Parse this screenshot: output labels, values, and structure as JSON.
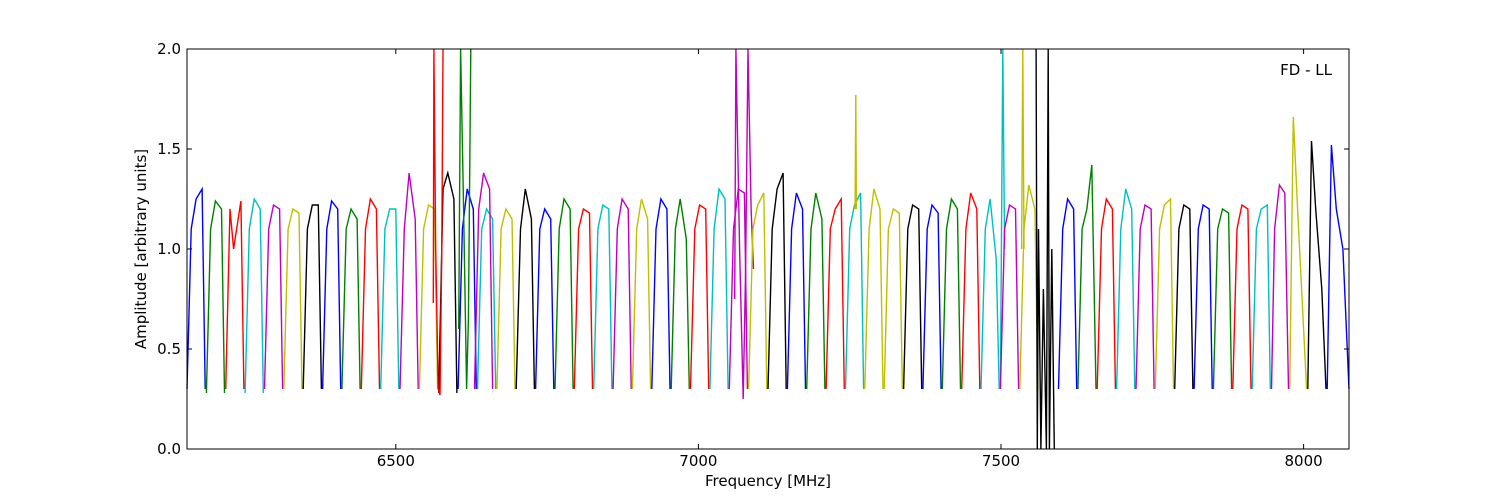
{
  "chart_data": {
    "type": "line",
    "annotation": "FD - LL",
    "xlabel": "Frequency [MHz]",
    "ylabel": "Amplitude [arbitrary units]",
    "xlim": [
      6155,
      8075
    ],
    "ylim": [
      0.0,
      2.0
    ],
    "x_ticks": [
      6500,
      7000,
      7500,
      8000
    ],
    "x_tick_labels": [
      "6500",
      "7000",
      "7500",
      "8000"
    ],
    "y_ticks": [
      0.0,
      0.5,
      1.0,
      1.5,
      2.0
    ],
    "y_tick_labels": [
      "0.0",
      "0.5",
      "1.0",
      "1.5",
      "2.0"
    ],
    "grid": false,
    "channel_width_mhz": 32,
    "first_channel_start_mhz": 6155,
    "color_cycle": [
      "#0000ff",
      "#008000",
      "#ff0000",
      "#00bfbf",
      "#bf00bf",
      "#bfbf00",
      "#000000"
    ],
    "flagged_color": "#bfbfbf",
    "series": [
      {
        "x": [
          6155,
          6162,
          6170,
          6180,
          6185
        ],
        "y": [
          0.3,
          1.1,
          1.25,
          1.3,
          0.3
        ],
        "color": "#0000ff"
      },
      {
        "x": [
          6187,
          6194,
          6202,
          6212,
          6217
        ],
        "y": [
          0.28,
          1.1,
          1.24,
          1.2,
          0.28
        ],
        "color": "#008000"
      },
      {
        "x": [
          6219,
          6226,
          6232,
          6244,
          6249
        ],
        "y": [
          0.3,
          1.2,
          1.0,
          1.24,
          0.3
        ],
        "color": "#ff0000"
      },
      {
        "x": [
          6251,
          6258,
          6266,
          6276,
          6281
        ],
        "y": [
          0.28,
          1.1,
          1.25,
          1.2,
          0.28
        ],
        "color": "#00bfbf"
      },
      {
        "x": [
          6283,
          6290,
          6298,
          6308,
          6313
        ],
        "y": [
          0.3,
          1.1,
          1.22,
          1.2,
          0.3
        ],
        "color": "#bf00bf"
      },
      {
        "x": [
          6315,
          6322,
          6330,
          6340,
          6345
        ],
        "y": [
          0.3,
          1.1,
          1.2,
          1.18,
          0.3
        ],
        "color": "#bfbf00"
      },
      {
        "x": [
          6347,
          6354,
          6362,
          6372,
          6377
        ],
        "y": [
          0.3,
          1.1,
          1.22,
          1.22,
          0.3
        ],
        "color": "#000000"
      },
      {
        "x": [
          6379,
          6386,
          6394,
          6404,
          6409
        ],
        "y": [
          0.3,
          1.1,
          1.24,
          1.2,
          0.3
        ],
        "color": "#0000ff"
      },
      {
        "x": [
          6411,
          6418,
          6426,
          6436,
          6441
        ],
        "y": [
          0.3,
          1.1,
          1.2,
          1.15,
          0.3
        ],
        "color": "#008000"
      },
      {
        "x": [
          6443,
          6450,
          6458,
          6468,
          6473
        ],
        "y": [
          0.3,
          1.1,
          1.25,
          1.2,
          0.3
        ],
        "color": "#ff0000"
      },
      {
        "x": [
          6475,
          6482,
          6490,
          6500,
          6505
        ],
        "y": [
          0.3,
          1.1,
          1.2,
          1.2,
          0.3
        ],
        "color": "#00bfbf"
      },
      {
        "x": [
          6507,
          6514,
          6522,
          6532,
          6537
        ],
        "y": [
          0.3,
          1.1,
          1.38,
          1.15,
          0.3
        ],
        "color": "#bf00bf"
      },
      {
        "x": [
          6539,
          6546,
          6554,
          6564,
          6569
        ],
        "y": [
          0.3,
          1.1,
          1.22,
          1.2,
          0.3
        ],
        "color": "#bfbf00"
      },
      {
        "x": [
          6571,
          6578,
          6586,
          6596,
          6601
        ],
        "y": [
          0.28,
          1.3,
          1.38,
          1.25,
          0.28
        ],
        "color": "#000000"
      },
      {
        "x": [
          6562,
          6563,
          6566,
          6570,
          6573,
          6576,
          6578
        ],
        "y": [
          0.73,
          2.0,
          1.0,
          0.3,
          0.27,
          1.0,
          2.0
        ],
        "color": "#ff0000"
      },
      {
        "x": [
          6603,
          6610,
          6618,
          6628,
          6633
        ],
        "y": [
          0.3,
          1.1,
          1.3,
          1.2,
          0.3
        ],
        "color": "#0000ff"
      },
      {
        "x": [
          6635,
          6642,
          6650,
          6660,
          6665
        ],
        "y": [
          0.3,
          1.1,
          1.2,
          1.15,
          0.3
        ],
        "color": "#00bfbf"
      },
      {
        "x": [
          6604,
          6607,
          6612,
          6617,
          6620,
          6624
        ],
        "y": [
          0.6,
          2.0,
          1.2,
          0.3,
          0.65,
          2.0
        ],
        "color": "#008000"
      },
      {
        "x": [
          6630,
          6637,
          6645,
          6655,
          6660
        ],
        "y": [
          0.3,
          1.2,
          1.38,
          1.3,
          0.3
        ],
        "color": "#bf00bf"
      },
      {
        "x": [
          6667,
          6674,
          6682,
          6692,
          6697
        ],
        "y": [
          0.3,
          1.1,
          1.2,
          1.15,
          0.3
        ],
        "color": "#bfbf00"
      },
      {
        "x": [
          6699,
          6706,
          6714,
          6724,
          6729
        ],
        "y": [
          0.3,
          1.1,
          1.3,
          1.15,
          0.3
        ],
        "color": "#000000"
      },
      {
        "x": [
          6731,
          6738,
          6746,
          6756,
          6761
        ],
        "y": [
          0.3,
          1.1,
          1.2,
          1.15,
          0.3
        ],
        "color": "#0000ff"
      },
      {
        "x": [
          6763,
          6770,
          6778,
          6788,
          6793
        ],
        "y": [
          0.3,
          1.1,
          1.25,
          1.2,
          0.3
        ],
        "color": "#008000"
      },
      {
        "x": [
          6795,
          6802,
          6810,
          6820,
          6825
        ],
        "y": [
          0.3,
          1.1,
          1.2,
          1.18,
          0.3
        ],
        "color": "#ff0000"
      },
      {
        "x": [
          6827,
          6834,
          6842,
          6852,
          6857
        ],
        "y": [
          0.3,
          1.1,
          1.22,
          1.2,
          0.3
        ],
        "color": "#00bfbf"
      },
      {
        "x": [
          6859,
          6866,
          6874,
          6884,
          6889
        ],
        "y": [
          0.3,
          1.1,
          1.25,
          1.2,
          0.3
        ],
        "color": "#bf00bf"
      },
      {
        "x": [
          6891,
          6898,
          6906,
          6916,
          6921
        ],
        "y": [
          0.3,
          1.1,
          1.25,
          1.15,
          0.3
        ],
        "color": "#bfbf00"
      },
      {
        "x": [
          6923,
          6930,
          6938,
          6948,
          6953
        ],
        "y": [
          0.3,
          1.1,
          1.25,
          1.2,
          0.3
        ],
        "color": "#0000ff"
      },
      {
        "x": [
          6955,
          6962,
          6970,
          6980,
          6985
        ],
        "y": [
          0.3,
          1.1,
          1.25,
          1.05,
          0.3
        ],
        "color": "#008000"
      },
      {
        "x": [
          6987,
          6994,
          7002,
          7012,
          7017
        ],
        "y": [
          0.3,
          1.1,
          1.22,
          1.2,
          0.3
        ],
        "color": "#ff0000"
      },
      {
        "x": [
          7019,
          7026,
          7034,
          7044,
          7049
        ],
        "y": [
          0.3,
          1.1,
          1.3,
          1.25,
          0.3
        ],
        "color": "#00bfbf"
      },
      {
        "x": [
          7060,
          7062,
          7068,
          7074,
          7078,
          7082,
          7087,
          7091
        ],
        "y": [
          0.75,
          2.0,
          1.0,
          0.25,
          0.9,
          2.0,
          1.2,
          0.9
        ],
        "color": "#bf00bf"
      },
      {
        "x": [
          7051,
          7058,
          7066,
          7076,
          7081
        ],
        "y": [
          0.3,
          1.1,
          1.3,
          1.28,
          0.3
        ],
        "color": "#bf00bf"
      },
      {
        "x": [
          7083,
          7090,
          7098,
          7108,
          7113
        ],
        "y": [
          0.3,
          1.1,
          1.22,
          1.28,
          0.3
        ],
        "color": "#bfbf00"
      },
      {
        "x": [
          7115,
          7122,
          7130,
          7140,
          7145
        ],
        "y": [
          0.3,
          1.1,
          1.3,
          1.38,
          0.3
        ],
        "color": "#000000"
      },
      {
        "x": [
          7147,
          7154,
          7162,
          7172,
          7177
        ],
        "y": [
          0.3,
          1.1,
          1.28,
          1.2,
          0.3
        ],
        "color": "#0000ff"
      },
      {
        "x": [
          7179,
          7186,
          7194,
          7204,
          7209
        ],
        "y": [
          0.3,
          1.1,
          1.28,
          1.15,
          0.3
        ],
        "color": "#008000"
      },
      {
        "x": [
          7211,
          7218,
          7226,
          7236,
          7241
        ],
        "y": [
          0.3,
          1.1,
          1.2,
          1.25,
          0.3
        ],
        "color": "#ff0000"
      },
      {
        "x": [
          7243,
          7250,
          7258,
          7268,
          7273
        ],
        "y": [
          0.3,
          1.1,
          1.22,
          1.28,
          0.3
        ],
        "color": "#00bfbf"
      },
      {
        "x": [
          7259,
          7260,
          7261
        ],
        "y": [
          1.2,
          1.77,
          1.2
        ],
        "color": "#bfbf00"
      },
      {
        "x": [
          7275,
          7282,
          7290,
          7300,
          7305
        ],
        "y": [
          0.3,
          1.1,
          1.3,
          1.2,
          0.3
        ],
        "color": "#bfbf00"
      },
      {
        "x": [
          7307,
          7314,
          7322,
          7332,
          7337
        ],
        "y": [
          0.3,
          1.1,
          1.2,
          1.18,
          0.3
        ],
        "color": "#bfbf00"
      },
      {
        "x": [
          7339,
          7346,
          7354,
          7364,
          7369
        ],
        "y": [
          0.3,
          1.1,
          1.22,
          1.2,
          0.3
        ],
        "color": "#000000"
      },
      {
        "x": [
          7371,
          7378,
          7386,
          7396,
          7401
        ],
        "y": [
          0.3,
          1.1,
          1.22,
          1.18,
          0.3
        ],
        "color": "#0000ff"
      },
      {
        "x": [
          7403,
          7410,
          7418,
          7428,
          7433
        ],
        "y": [
          0.3,
          1.1,
          1.25,
          1.2,
          0.3
        ],
        "color": "#008000"
      },
      {
        "x": [
          7435,
          7442,
          7450,
          7460,
          7465
        ],
        "y": [
          0.3,
          1.1,
          1.28,
          1.2,
          0.3
        ],
        "color": "#ff0000"
      },
      {
        "x": [
          7467,
          7474,
          7482,
          7492,
          7497
        ],
        "y": [
          0.3,
          1.1,
          1.25,
          0.95,
          0.3
        ],
        "color": "#00bfbf"
      },
      {
        "x": [
          7499,
          7503,
          7506
        ],
        "y": [
          0.3,
          2.0,
          1.0
        ],
        "color": "#00bfbf"
      },
      {
        "x": [
          7499,
          7506,
          7514,
          7524,
          7529
        ],
        "y": [
          0.3,
          1.1,
          1.22,
          1.2,
          0.3
        ],
        "color": "#bf00bf"
      },
      {
        "x": [
          7531,
          7538,
          7546,
          7556,
          7561
        ],
        "y": [
          0.3,
          1.1,
          1.32,
          1.2,
          0.3
        ],
        "color": "#bfbf00"
      },
      {
        "x": [
          7534,
          7536,
          7538
        ],
        "y": [
          1.0,
          2.0,
          1.0
        ],
        "color": "#bfbf00"
      },
      {
        "x": [
          7558,
          7560,
          7562,
          7566,
          7570,
          7575,
          7578,
          7580,
          7584,
          7588
        ],
        "y": [
          2.0,
          0.0,
          1.1,
          0.0,
          0.8,
          0.0,
          2.0,
          0.0,
          1.0,
          0.0
        ],
        "color": "#000000"
      },
      {
        "x": [
          7595,
          7602,
          7610,
          7620,
          7625
        ],
        "y": [
          0.3,
          1.1,
          1.25,
          1.2,
          0.3
        ],
        "color": "#0000ff"
      },
      {
        "x": [
          7627,
          7634,
          7642,
          7650,
          7657
        ],
        "y": [
          0.3,
          1.1,
          1.2,
          1.42,
          0.3
        ],
        "color": "#008000"
      },
      {
        "x": [
          7659,
          7666,
          7674,
          7684,
          7689
        ],
        "y": [
          0.3,
          1.1,
          1.25,
          1.2,
          0.3
        ],
        "color": "#ff0000"
      },
      {
        "x": [
          7691,
          7698,
          7706,
          7716,
          7721
        ],
        "y": [
          0.3,
          1.1,
          1.3,
          1.2,
          0.3
        ],
        "color": "#00bfbf"
      },
      {
        "x": [
          7723,
          7730,
          7738,
          7748,
          7753
        ],
        "y": [
          0.3,
          1.1,
          1.22,
          1.2,
          0.3
        ],
        "color": "#bf00bf"
      },
      {
        "x": [
          7755,
          7762,
          7770,
          7780,
          7785
        ],
        "y": [
          0.3,
          1.1,
          1.22,
          1.25,
          0.3
        ],
        "color": "#bfbf00"
      },
      {
        "x": [
          7787,
          7794,
          7802,
          7812,
          7817
        ],
        "y": [
          0.3,
          1.1,
          1.22,
          1.2,
          0.3
        ],
        "color": "#000000"
      },
      {
        "x": [
          7819,
          7826,
          7834,
          7844,
          7849
        ],
        "y": [
          0.3,
          1.1,
          1.22,
          1.2,
          0.3
        ],
        "color": "#0000ff"
      },
      {
        "x": [
          7851,
          7858,
          7866,
          7876,
          7881
        ],
        "y": [
          0.3,
          1.1,
          1.2,
          1.18,
          0.3
        ],
        "color": "#008000"
      },
      {
        "x": [
          7883,
          7890,
          7898,
          7908,
          7913
        ],
        "y": [
          0.3,
          1.1,
          1.22,
          1.2,
          0.3
        ],
        "color": "#ff0000"
      },
      {
        "x": [
          7915,
          7922,
          7930,
          7940,
          7945
        ],
        "y": [
          0.3,
          1.1,
          1.2,
          1.22,
          0.3
        ],
        "color": "#00bfbf"
      },
      {
        "x": [
          7947,
          7952,
          7960,
          7969,
          7975
        ],
        "y": [
          0.3,
          1.1,
          1.32,
          1.28,
          0.3
        ],
        "color": "#bf00bf"
      },
      {
        "x": [
          7977,
          7983,
          7990,
          8000,
          8005
        ],
        "y": [
          0.3,
          1.66,
          1.2,
          0.6,
          0.3
        ],
        "color": "#bfbf00"
      },
      {
        "x": [
          8007,
          8013,
          8020,
          8030,
          8037
        ],
        "y": [
          0.3,
          1.54,
          1.2,
          0.8,
          0.3
        ],
        "color": "#000000"
      },
      {
        "x": [
          8039,
          8046,
          8054,
          8065,
          8075
        ],
        "y": [
          0.3,
          1.52,
          1.2,
          1.0,
          0.3
        ],
        "color": "#0000ff"
      }
    ]
  }
}
